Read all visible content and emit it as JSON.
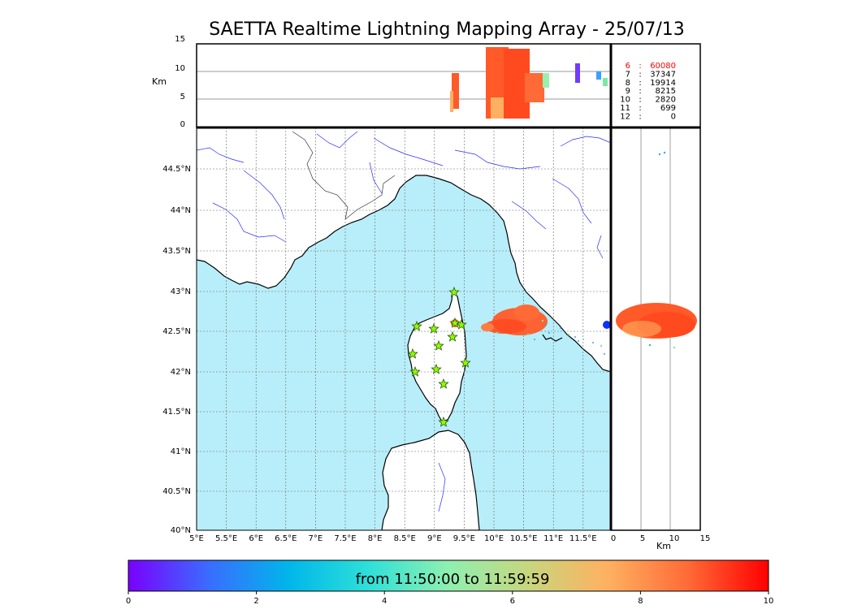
{
  "title": "SAETTA Realtime Lightning Mapping Array - 25/07/13",
  "altitude_panel": {
    "ylabel": "Km",
    "yticks": [
      "15",
      "10",
      "5",
      "0"
    ]
  },
  "side_panel": {
    "xlabel": "Km",
    "xticks": [
      "0",
      "5",
      "10",
      "15"
    ]
  },
  "stats": [
    {
      "stations": "6",
      "sep": ":",
      "count": "60080",
      "highlight": true
    },
    {
      "stations": "7",
      "sep": ":",
      "count": "37347",
      "highlight": false
    },
    {
      "stations": "8",
      "sep": ":",
      "count": "19914",
      "highlight": false
    },
    {
      "stations": "9",
      "sep": ":",
      "count": "8215",
      "highlight": false
    },
    {
      "stations": "10",
      "sep": ":",
      "count": "2820",
      "highlight": false
    },
    {
      "stations": "11",
      "sep": ":",
      "count": "699",
      "highlight": false
    },
    {
      "stations": "12",
      "sep": ":",
      "count": "0",
      "highlight": false
    }
  ],
  "map": {
    "lon_ticks": [
      "5°E",
      "5.5°E",
      "6°E",
      "6.5°E",
      "7°E",
      "7.5°E",
      "8°E",
      "8.5°E",
      "9°E",
      "9.5°E",
      "10°E",
      "10.5°E",
      "11°E",
      "11.5°E"
    ],
    "lat_ticks": [
      "44.5°N",
      "44°N",
      "43.5°N",
      "43°N",
      "42.5°N",
      "42°N",
      "41.5°N",
      "41°N",
      "40.5°N",
      "40°N"
    ],
    "sea_color": "#b8eefa",
    "station_count": 13
  },
  "colorbar": {
    "label": "from 11:50:00 to 11:59:59",
    "ticks": [
      "0",
      "2",
      "4",
      "6",
      "8",
      "10"
    ],
    "range": [
      0,
      10
    ],
    "colors": [
      "#7a00ff",
      "#3a6cff",
      "#00b6ea",
      "#2ee0d8",
      "#8ef0b0",
      "#c8d67e",
      "#ffb060",
      "#ff6a36",
      "#ff0000"
    ]
  }
}
